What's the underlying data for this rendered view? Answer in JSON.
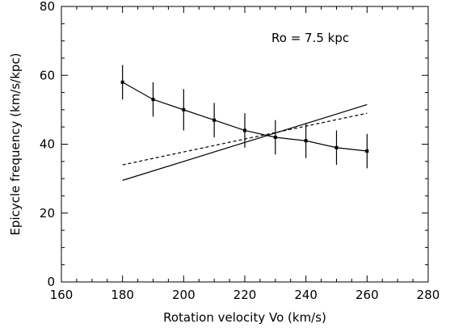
{
  "chart_data": {
    "type": "line",
    "title": "",
    "annotation": "Ro = 7.5 kpc",
    "xlabel": "Rotation velocity Vo (km/s)",
    "ylabel": "Epicycle frequency (km/s/kpc)",
    "xlim": [
      160,
      280
    ],
    "ylim": [
      0,
      80
    ],
    "xticks": [
      160,
      180,
      200,
      220,
      240,
      260,
      280
    ],
    "yticks": [
      0,
      20,
      40,
      60,
      80
    ],
    "x_minor_step": 5,
    "y_minor_step": 5,
    "grid": false,
    "legend": "none",
    "series": [
      {
        "style": "solid-with-errorbars",
        "x": [
          180,
          190,
          200,
          210,
          220,
          230,
          240,
          250,
          260
        ],
        "y": [
          58,
          53,
          50,
          47,
          44,
          42,
          41,
          39,
          38
        ],
        "yerr": [
          5,
          5,
          6,
          5,
          5,
          5,
          5,
          5,
          5
        ]
      },
      {
        "style": "solid",
        "x": [
          180,
          260
        ],
        "y": [
          29.5,
          51.5
        ]
      },
      {
        "style": "dashed",
        "x": [
          180,
          260
        ],
        "y": [
          34,
          49
        ]
      }
    ]
  }
}
